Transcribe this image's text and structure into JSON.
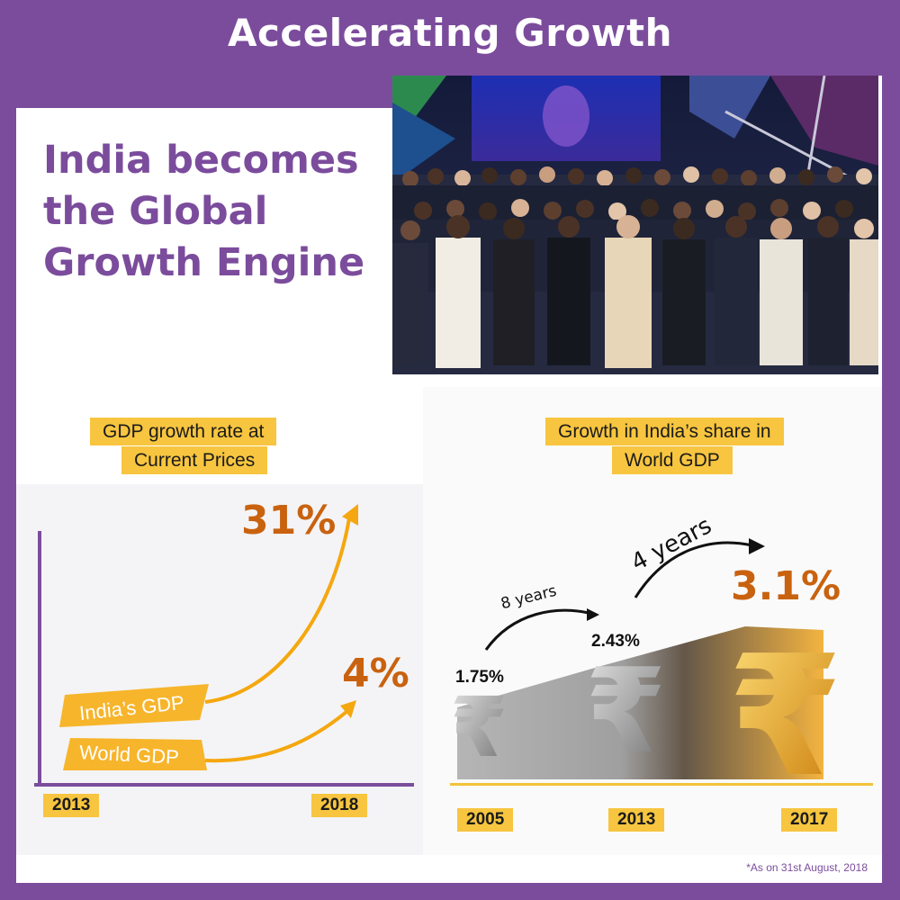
{
  "header": {
    "title": "Accelerating Growth"
  },
  "headline": {
    "line1": "India becomes",
    "line2": "the Global",
    "line3": "Growth Engine"
  },
  "gdp_growth": {
    "label_line1": "GDP growth rate at",
    "label_line2": "Current Prices",
    "india_label": "India’s GDP",
    "world_label": "World GDP",
    "india_value": "31%",
    "world_value": "4%",
    "year_start": "2013",
    "year_end": "2018"
  },
  "world_share": {
    "label_line1": "Growth in India’s share in",
    "label_line2": "World GDP",
    "gap1": "8 years",
    "gap2": "4 years",
    "points": [
      {
        "year": "2005",
        "value": "1.75%"
      },
      {
        "year": "2013",
        "value": "2.43%"
      },
      {
        "year": "2017",
        "value": "3.1%"
      }
    ]
  },
  "footnote": "*As on 31st August, 2018",
  "colors": {
    "purple": "#7b4c9c",
    "yellow": "#f7c53f",
    "orange": "#c9620f",
    "arrow": "#f5a70f"
  },
  "icons": [
    "rupee-icon",
    "arrow-icon"
  ]
}
